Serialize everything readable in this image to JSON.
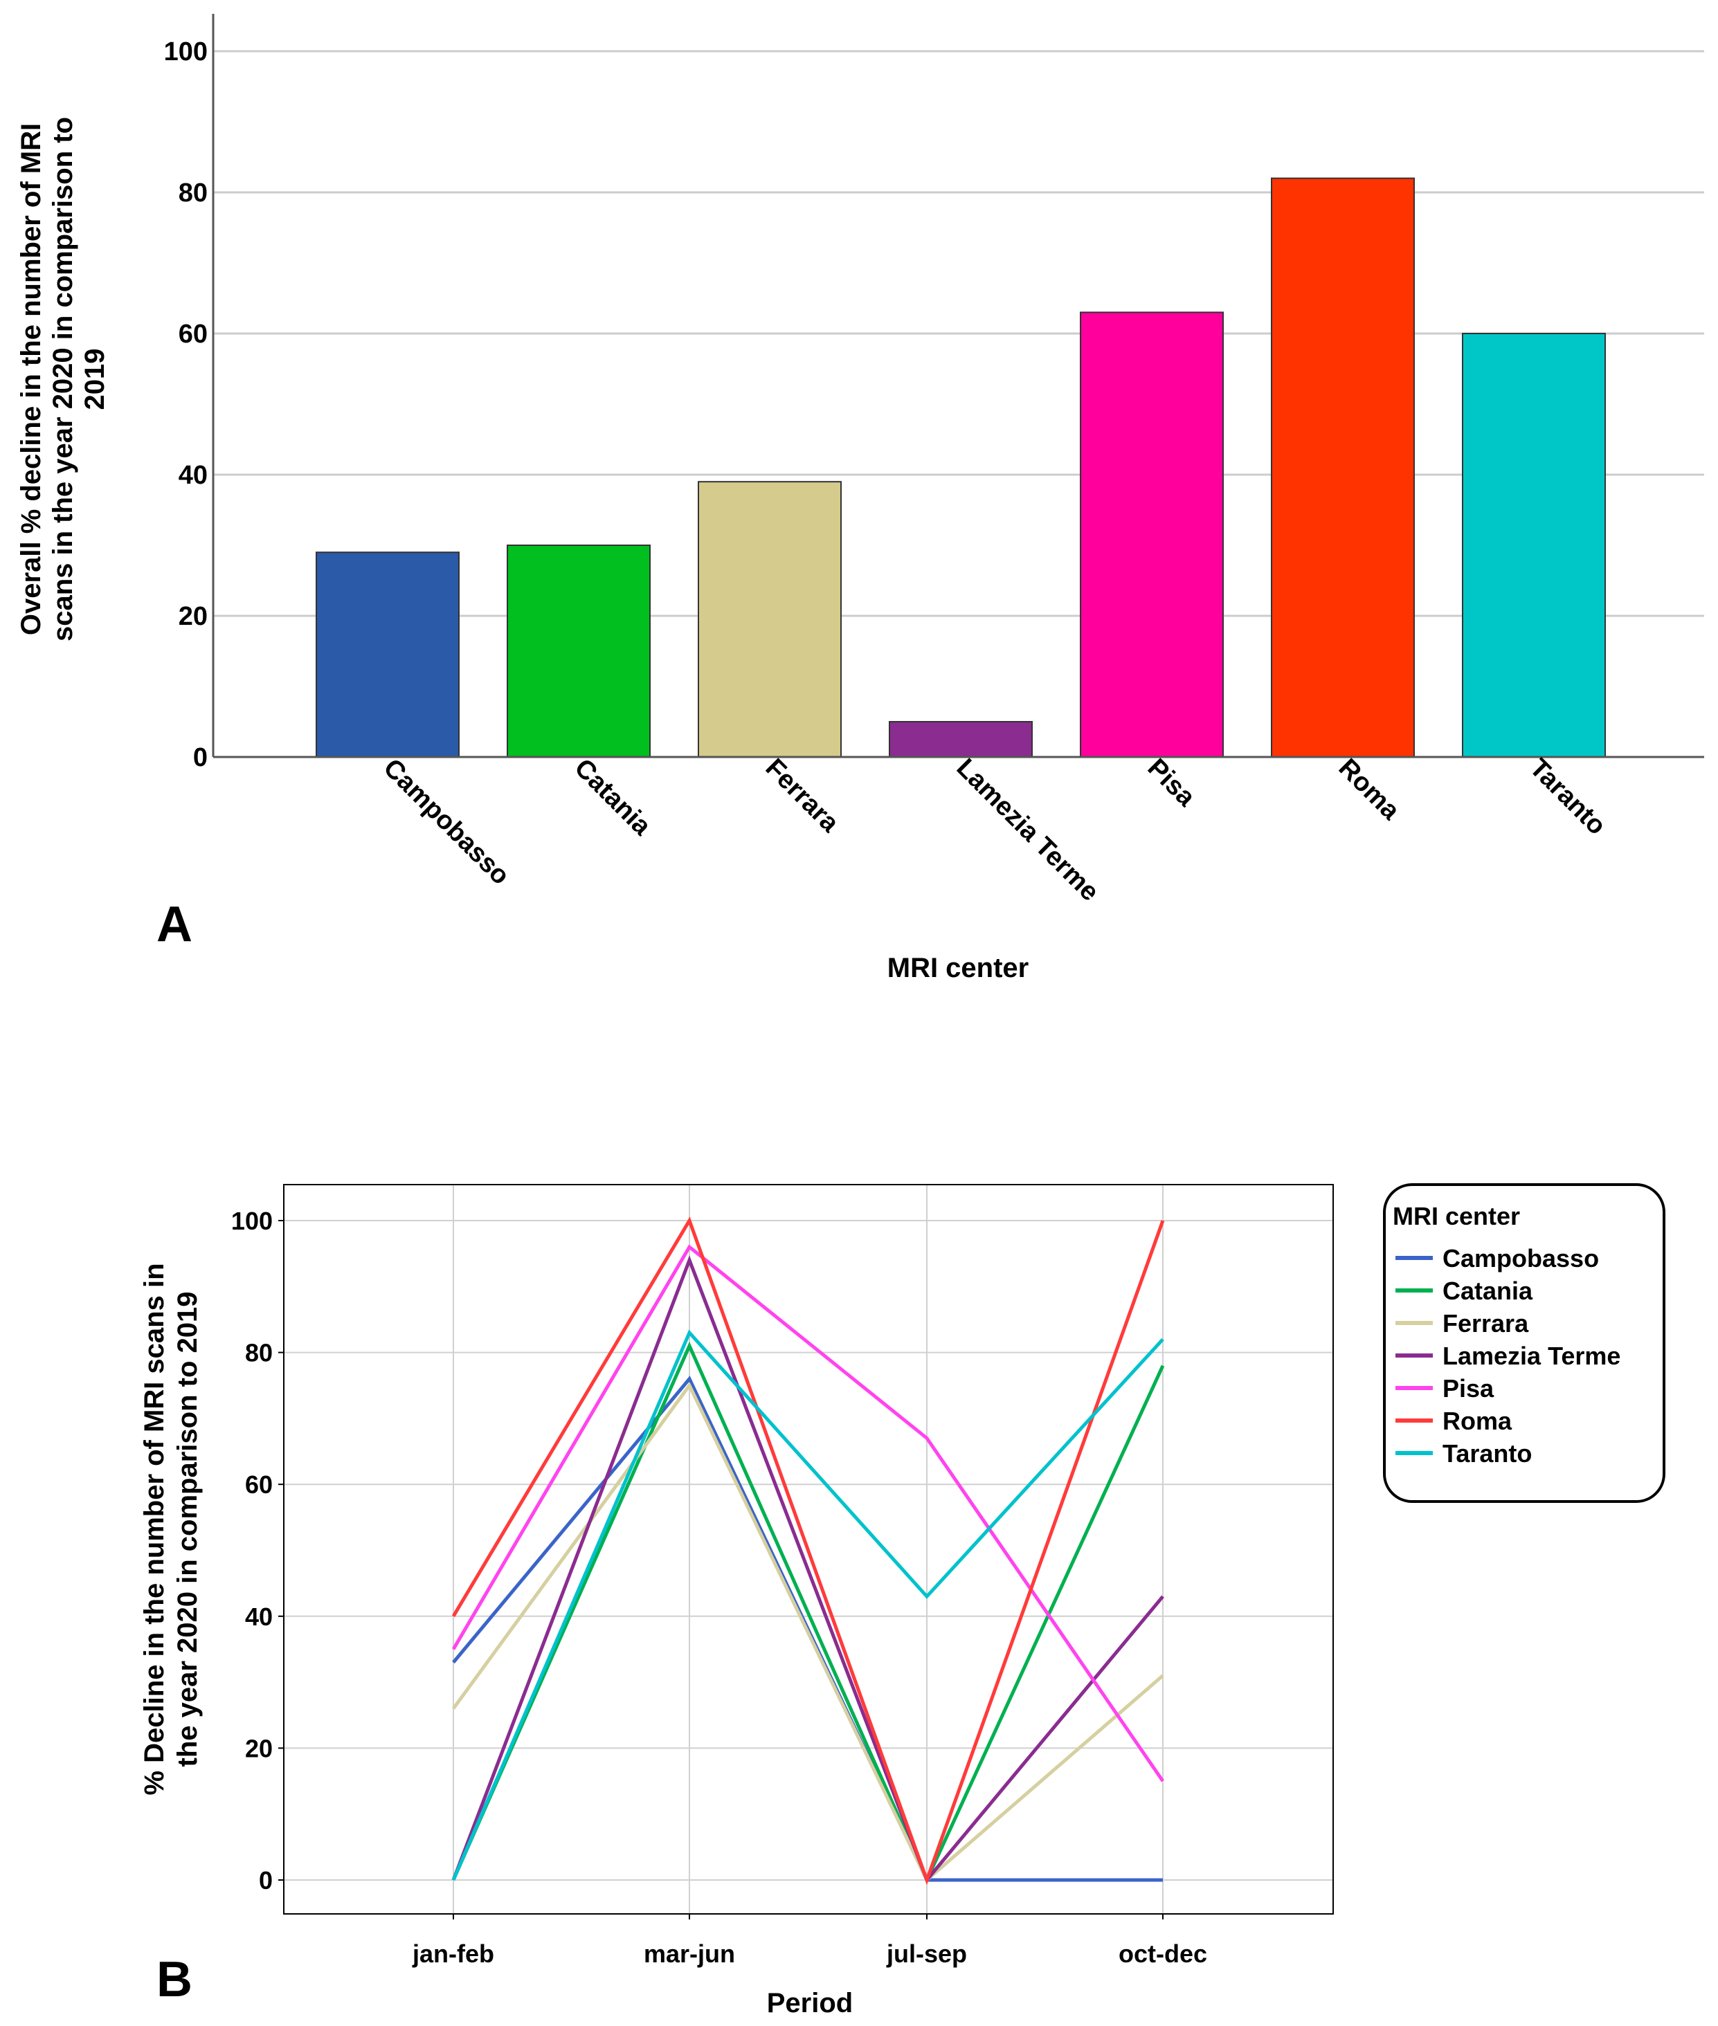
{
  "chart_data": [
    {
      "type": "bar",
      "panel_label": "A",
      "categories": [
        "Campobasso",
        "Catania",
        "Ferrara",
        "Lamezia Terme",
        "Pisa",
        "Roma",
        "Taranto"
      ],
      "values": [
        29,
        30,
        39,
        5,
        63,
        82,
        60
      ],
      "colors": [
        "#2a5aa8",
        "#00bf1f",
        "#d5cb8c",
        "#8a2c90",
        "#ff009c",
        "#ff3300",
        "#00c7c7"
      ],
      "xlabel": "MRI center",
      "ylabel_lines": [
        "Overall % decline in the number of MRI",
        "scans in the year 2020 in comparison to",
        "2019"
      ],
      "ylim": [
        0,
        100
      ],
      "yticks": [
        0,
        20,
        40,
        60,
        80,
        100
      ],
      "grid": true
    },
    {
      "type": "line",
      "panel_label": "B",
      "x": [
        "jan-feb",
        "mar-jun",
        "jul-sep",
        "oct-dec"
      ],
      "series": [
        {
          "name": "Campobasso",
          "color": "#3b64c8",
          "values": [
            33,
            76,
            0,
            0
          ]
        },
        {
          "name": "Catania",
          "color": "#00b050",
          "values": [
            0,
            81,
            0,
            78
          ]
        },
        {
          "name": "Ferrara",
          "color": "#d6cfa0",
          "values": [
            26,
            75,
            0,
            31
          ]
        },
        {
          "name": "Lamezia Terme",
          "color": "#8a2c90",
          "values": [
            0,
            94,
            0,
            43
          ]
        },
        {
          "name": "Pisa",
          "color": "#ff44ee",
          "values": [
            35,
            96,
            67,
            15
          ]
        },
        {
          "name": "Roma",
          "color": "#ff3b3b",
          "values": [
            40,
            100,
            0,
            100
          ]
        },
        {
          "name": "Taranto",
          "color": "#00c2cc",
          "values": [
            0,
            83,
            43,
            82
          ]
        }
      ],
      "xlabel": "Period",
      "ylabel_lines": [
        "% Decline in the number of MRI scans in",
        "the year 2020 in comparison to 2019"
      ],
      "ylim": [
        0,
        100
      ],
      "yticks": [
        0,
        20,
        40,
        60,
        80,
        100
      ],
      "legend_title": "MRI center",
      "legend_position": "right",
      "grid": true
    }
  ]
}
